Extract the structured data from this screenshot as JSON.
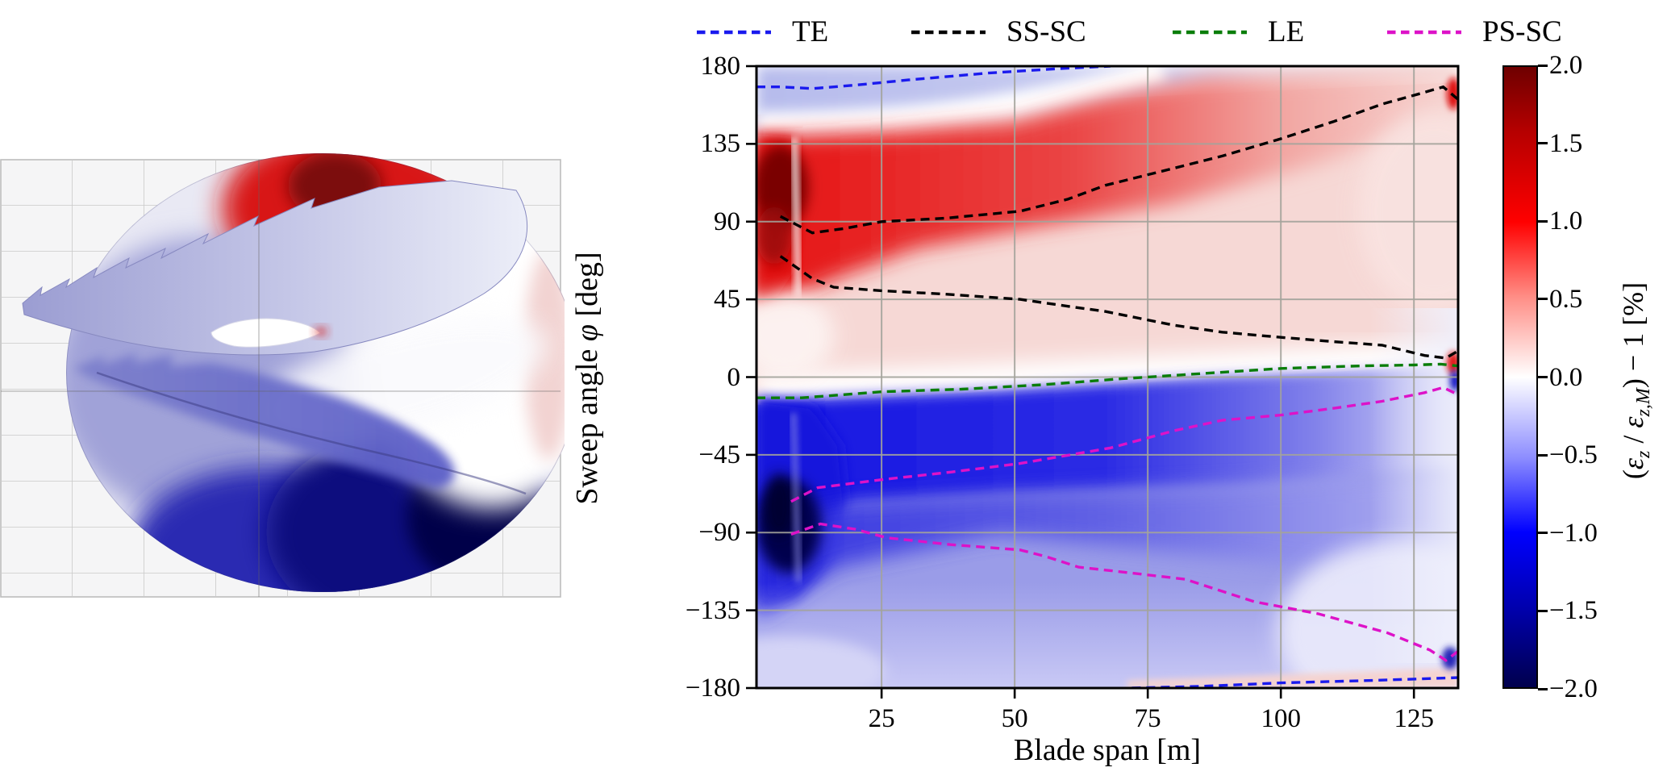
{
  "figure": {
    "background": "#ffffff",
    "description": "Scientific figure: left 3D swept wind turbine blade surface colored by axial strain ratio; right heatmap of strain ratio vs blade span and sweep angle with shear-center and edge contours."
  },
  "legend": {
    "items": [
      {
        "label": "TE",
        "color": "#1a1aee"
      },
      {
        "label": "SS-SC",
        "color": "#000000"
      },
      {
        "label": "LE",
        "color": "#0a7d0a"
      },
      {
        "label": "PS-SC",
        "color": "#dd12c8"
      }
    ]
  },
  "labels": {
    "xlabel": "Blade span [m]",
    "ylabel_parts": {
      "p1": "Sweep angle ",
      "sym": "φ",
      "p2": " [deg]"
    },
    "cbar_parts": {
      "p1": "(",
      "e1": "ε",
      "s1": "z",
      "p2": " / ",
      "e2": "ε",
      "s2": "z,M",
      "p3": ") − 1 [%]"
    }
  },
  "chart_data": {
    "type": "heatmap",
    "title": "",
    "xlabel": "Blade span [m]",
    "ylabel": "Sweep angle φ [deg]",
    "xlim": [
      1.5,
      133.3
    ],
    "ylim": [
      -180,
      180
    ],
    "x_ticks": [
      25,
      50,
      75,
      100,
      125
    ],
    "y_ticks": [
      180,
      135,
      90,
      45,
      0,
      -45,
      -90,
      -135,
      -180
    ],
    "grid": true,
    "legend_position": "top",
    "colormap": "seismic",
    "colorbar": {
      "label": "(εz / εz,M) − 1 [%]",
      "vmin": -2.0,
      "vmax": 2.0,
      "ticks": [
        2.0,
        1.5,
        1.0,
        0.5,
        0.0,
        -0.5,
        -1.0,
        -1.5,
        -2.0
      ]
    },
    "field_regions": [
      "maximum positive strain ratio ~+2% dark red blob near root at sweep +90..+115 deg, span 4-10 m",
      "red band between SS-SC branches fading from ~+2% at root to ~+0.2% at tip",
      "minimum ~-2% navy blob near root at sweep -75..-95 deg, span 5-10 m",
      "strong blue band (~-1.5%) just below LE contour fading toward tip",
      "pale blue strip along +180 deg edge near root; pale pink strip along -180 deg edge near tip",
      "local red hotspots at tip edge near both SS-SC endpoints; navy slivers at tip edge near PS-SC endpoints"
    ],
    "series": [
      {
        "name": "TE",
        "color": "#1a1aee",
        "branches": [
          [
            [
              1.5,
              168
            ],
            [
              6,
              168
            ],
            [
              12,
              167
            ],
            [
              20,
              169
            ],
            [
              30,
              172
            ],
            [
              45,
              176
            ],
            [
              58,
              178.5
            ],
            [
              68,
              180
            ]
          ],
          [
            [
              72,
              -180
            ],
            [
              85,
              -179
            ],
            [
              100,
              -177
            ],
            [
              118,
              -175.5
            ],
            [
              133.2,
              -174
            ]
          ]
        ]
      },
      {
        "name": "SS-SC",
        "color": "#000000",
        "branches": [
          [
            [
              6,
              93
            ],
            [
              12,
              83.5
            ],
            [
              18,
              86
            ],
            [
              25,
              90
            ],
            [
              37,
              92
            ],
            [
              51,
              96
            ],
            [
              60,
              103
            ],
            [
              67,
              111
            ],
            [
              80,
              121
            ],
            [
              89,
              128
            ],
            [
              100,
              138
            ],
            [
              110,
              148
            ],
            [
              119,
              158
            ],
            [
              126,
              164
            ],
            [
              130.5,
              168
            ],
            [
              133.2,
              161
            ]
          ],
          [
            [
              6,
              70
            ],
            [
              12,
              57
            ],
            [
              16,
              52
            ],
            [
              25,
              50
            ],
            [
              37,
              48
            ],
            [
              51,
              45
            ],
            [
              60,
              41
            ],
            [
              67,
              38
            ],
            [
              80,
              30
            ],
            [
              89,
              26
            ],
            [
              100,
              23
            ],
            [
              110,
              20.5
            ],
            [
              119,
              18.5
            ],
            [
              127,
              12.5
            ],
            [
              131,
              11
            ],
            [
              133.2,
              15
            ]
          ]
        ]
      },
      {
        "name": "LE",
        "color": "#0a7d0a",
        "branches": [
          [
            [
              1.5,
              -12
            ],
            [
              10,
              -12
            ],
            [
              25,
              -8.5
            ],
            [
              40,
              -7
            ],
            [
              55,
              -4.5
            ],
            [
              70,
              -1
            ],
            [
              85,
              2
            ],
            [
              100,
              5
            ],
            [
              115,
              6.5
            ],
            [
              125,
              7
            ],
            [
              130,
              7.5
            ],
            [
              133.2,
              6.5
            ]
          ]
        ]
      },
      {
        "name": "PS-SC",
        "color": "#dd12c8",
        "branches": [
          [
            [
              8,
              -72
            ],
            [
              13,
              -64
            ],
            [
              26,
              -59
            ],
            [
              38,
              -55
            ],
            [
              51,
              -50
            ],
            [
              68,
              -41
            ],
            [
              80,
              -31
            ],
            [
              89,
              -25
            ],
            [
              100,
              -22
            ],
            [
              110,
              -18
            ],
            [
              119,
              -14
            ],
            [
              127,
              -9
            ],
            [
              130.5,
              -6
            ],
            [
              133.2,
              -10
            ]
          ],
          [
            [
              8,
              -91
            ],
            [
              13.5,
              -85
            ],
            [
              20,
              -88
            ],
            [
              26,
              -93
            ],
            [
              38,
              -97
            ],
            [
              51,
              -100
            ],
            [
              56,
              -104
            ],
            [
              62,
              -110
            ],
            [
              68,
              -112
            ],
            [
              82,
              -117
            ],
            [
              95,
              -130
            ],
            [
              107,
              -137
            ],
            [
              120,
              -148
            ],
            [
              128,
              -158
            ],
            [
              131,
              -164
            ],
            [
              133.2,
              -159
            ]
          ]
        ]
      }
    ]
  },
  "left_panel": {
    "type": "3d-surface",
    "description": "3D view of swept blade surfaces colored by (εz / εz,M) − 1 [%], seismic colormap: red suction side top, navy pressure side bottom, lavender blade-section stack pointing left, white airfoil-shaped hole at center",
    "colormap": "seismic",
    "background_grid_color": "#f5f5f6"
  }
}
